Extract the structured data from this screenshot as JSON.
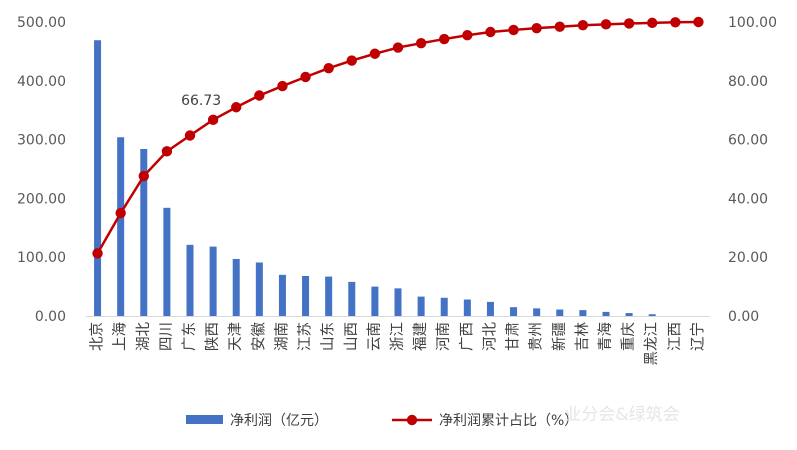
{
  "chart_data": {
    "type": "bar",
    "categories": [
      "北京",
      "上海",
      "湖北",
      "四川",
      "广东",
      "陕西",
      "天津",
      "安徽",
      "湖南",
      "江苏",
      "山东",
      "山西",
      "云南",
      "浙江",
      "福建",
      "河南",
      "广西",
      "河北",
      "甘肃",
      "贵州",
      "新疆",
      "吉林",
      "青海",
      "重庆",
      "黑龙江",
      "江西",
      "辽宁"
    ],
    "series": [
      {
        "name": "净利润（亿元）",
        "type": "bar",
        "axis": "left",
        "color": "#4472c4",
        "values": [
          469,
          304,
          284,
          184,
          121,
          118,
          97,
          91,
          70,
          68,
          67,
          58,
          50,
          47,
          33,
          31,
          28,
          24,
          15,
          13,
          11,
          10,
          7,
          5,
          3,
          0,
          0
        ]
      },
      {
        "name": "净利润累计占比（%）",
        "type": "line",
        "axis": "right",
        "color": "#c00000",
        "values": [
          21.3,
          35.0,
          47.6,
          56.0,
          61.4,
          66.73,
          71.0,
          75.0,
          78.2,
          81.3,
          84.3,
          86.9,
          89.2,
          91.3,
          92.8,
          94.2,
          95.5,
          96.6,
          97.3,
          97.9,
          98.4,
          98.9,
          99.2,
          99.5,
          99.7,
          99.9,
          100.0
        ]
      }
    ],
    "y_left": {
      "ylim": [
        0,
        500
      ],
      "ticks": [
        "0.00",
        "100.00",
        "200.00",
        "300.00",
        "400.00",
        "500.00"
      ]
    },
    "y_right": {
      "ylim": [
        0,
        100
      ],
      "ticks": [
        "0.00",
        "20.00",
        "40.00",
        "60.00",
        "80.00",
        "100.00"
      ]
    },
    "data_labels": [
      {
        "series": 1,
        "index": 5,
        "text": "66.73"
      }
    ],
    "grid": false,
    "legend": "bottom"
  },
  "watermark": "业分会&绿筑会"
}
